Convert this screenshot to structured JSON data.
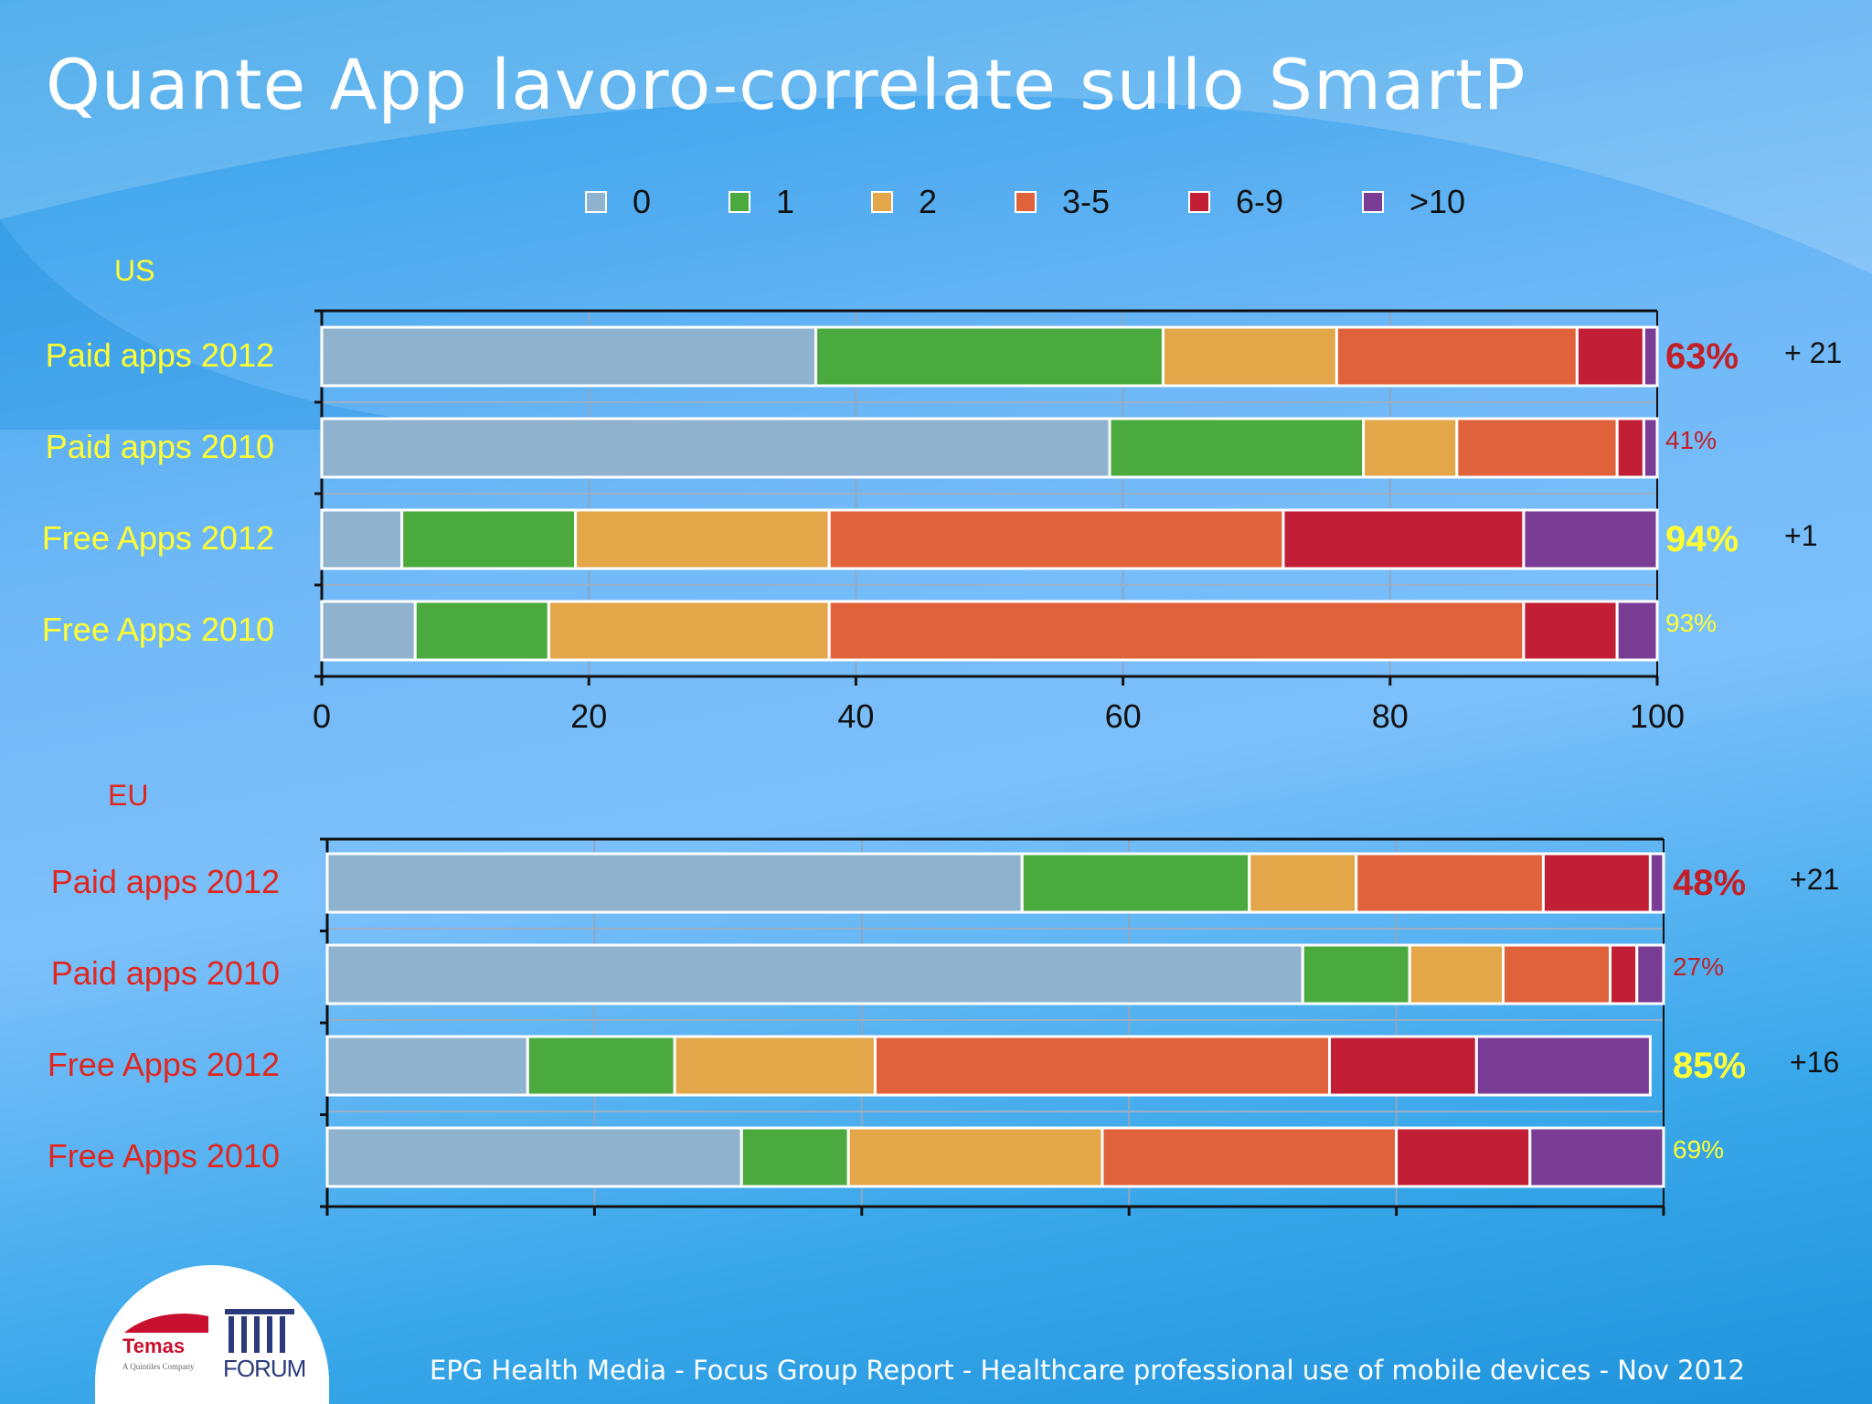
{
  "title": "Quante App lavoro-correlate sullo SmartP",
  "footer": "EPG Health Media - Focus Group Report - Healthcare professional use of mobile devices - Nov 2012",
  "logo": {
    "temas": "Temas",
    "temas_sub": "A Quintiles Company",
    "forum": "FORUM"
  },
  "legend": [
    {
      "label": "0",
      "color": "#8fb3cf"
    },
    {
      "label": "1",
      "color": "#4aaa3e"
    },
    {
      "label": "2",
      "color": "#e3a74a"
    },
    {
      "label": "3-5",
      "color": "#e0623a"
    },
    {
      "label": "6-9",
      "color": "#c21f36"
    },
    {
      "label": ">10",
      "color": "#7a3d95"
    }
  ],
  "chart_data": [
    {
      "type": "bar",
      "orientation": "horizontal",
      "stacked": true,
      "region": "US",
      "region_color": "#ffff33",
      "categories": [
        "Paid apps 2012",
        "Paid apps 2010",
        "Free Apps 2012",
        "Free Apps 2010"
      ],
      "category_color": "#ffff33",
      "xlim": [
        0,
        100
      ],
      "xticks": [
        "0",
        "20",
        "40",
        "60",
        "80",
        "100"
      ],
      "series": [
        {
          "name": "0",
          "values": [
            37,
            59,
            6,
            7
          ]
        },
        {
          "name": "1",
          "values": [
            26,
            19,
            13,
            10
          ]
        },
        {
          "name": "2",
          "values": [
            13,
            7,
            19,
            21
          ]
        },
        {
          "name": "3-5",
          "values": [
            18,
            12,
            34,
            52
          ]
        },
        {
          "name": "6-9",
          "values": [
            5,
            2,
            18,
            7
          ]
        },
        {
          "name": ">10",
          "values": [
            1,
            1,
            10,
            3
          ]
        }
      ],
      "totals": [
        {
          "text": "63%",
          "color": "#c21f26",
          "size": 40,
          "bold": true
        },
        {
          "text": "41%",
          "color": "#c21f26",
          "size": 28,
          "bold": false
        },
        {
          "text": "94%",
          "color": "#ffff33",
          "size": 40,
          "bold": true
        },
        {
          "text": "93%",
          "color": "#ffff33",
          "size": 28,
          "bold": false
        }
      ],
      "changes": [
        "+ 21",
        "",
        "+1",
        ""
      ]
    },
    {
      "type": "bar",
      "orientation": "horizontal",
      "stacked": true,
      "region": "EU",
      "region_color": "#e0261e",
      "categories": [
        "Paid apps 2012",
        "Paid apps 2010",
        "Free Apps 2012",
        "Free Apps 2010"
      ],
      "category_color": "#e0261e",
      "xlim": [
        0,
        100
      ],
      "xticks": [],
      "series": [
        {
          "name": "0",
          "values": [
            52,
            73,
            15,
            31
          ]
        },
        {
          "name": "1",
          "values": [
            17,
            8,
            11,
            8
          ]
        },
        {
          "name": "2",
          "values": [
            8,
            7,
            15,
            19
          ]
        },
        {
          "name": "3-5",
          "values": [
            14,
            8,
            34,
            22
          ]
        },
        {
          "name": "6-9",
          "values": [
            8,
            2,
            11,
            10
          ]
        },
        {
          "name": ">10",
          "values": [
            1,
            2,
            13,
            10
          ]
        }
      ],
      "totals": [
        {
          "text": "48%",
          "color": "#c21f26",
          "size": 40,
          "bold": true
        },
        {
          "text": "27%",
          "color": "#c21f26",
          "size": 28,
          "bold": false
        },
        {
          "text": "85%",
          "color": "#ffff33",
          "size": 40,
          "bold": true
        },
        {
          "text": "69%",
          "color": "#ffff33",
          "size": 28,
          "bold": false
        }
      ],
      "changes": [
        "+21",
        "",
        "+16",
        ""
      ]
    }
  ]
}
